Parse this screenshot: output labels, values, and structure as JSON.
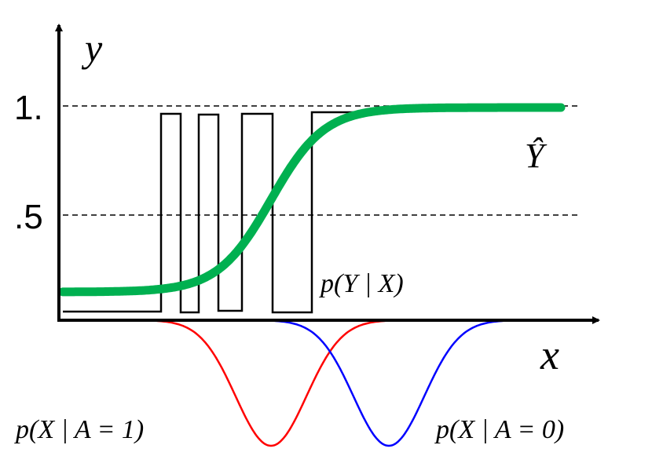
{
  "y_axis_label": "y",
  "x_axis_label": "x",
  "level_high": "1.",
  "level_mid": ".5",
  "prediction_label": "Ŷ",
  "conditional_label": "p(Y | X)",
  "group_1_label": "p(X | A = 1)",
  "group_0_label": "p(X | A = 0)"
}
